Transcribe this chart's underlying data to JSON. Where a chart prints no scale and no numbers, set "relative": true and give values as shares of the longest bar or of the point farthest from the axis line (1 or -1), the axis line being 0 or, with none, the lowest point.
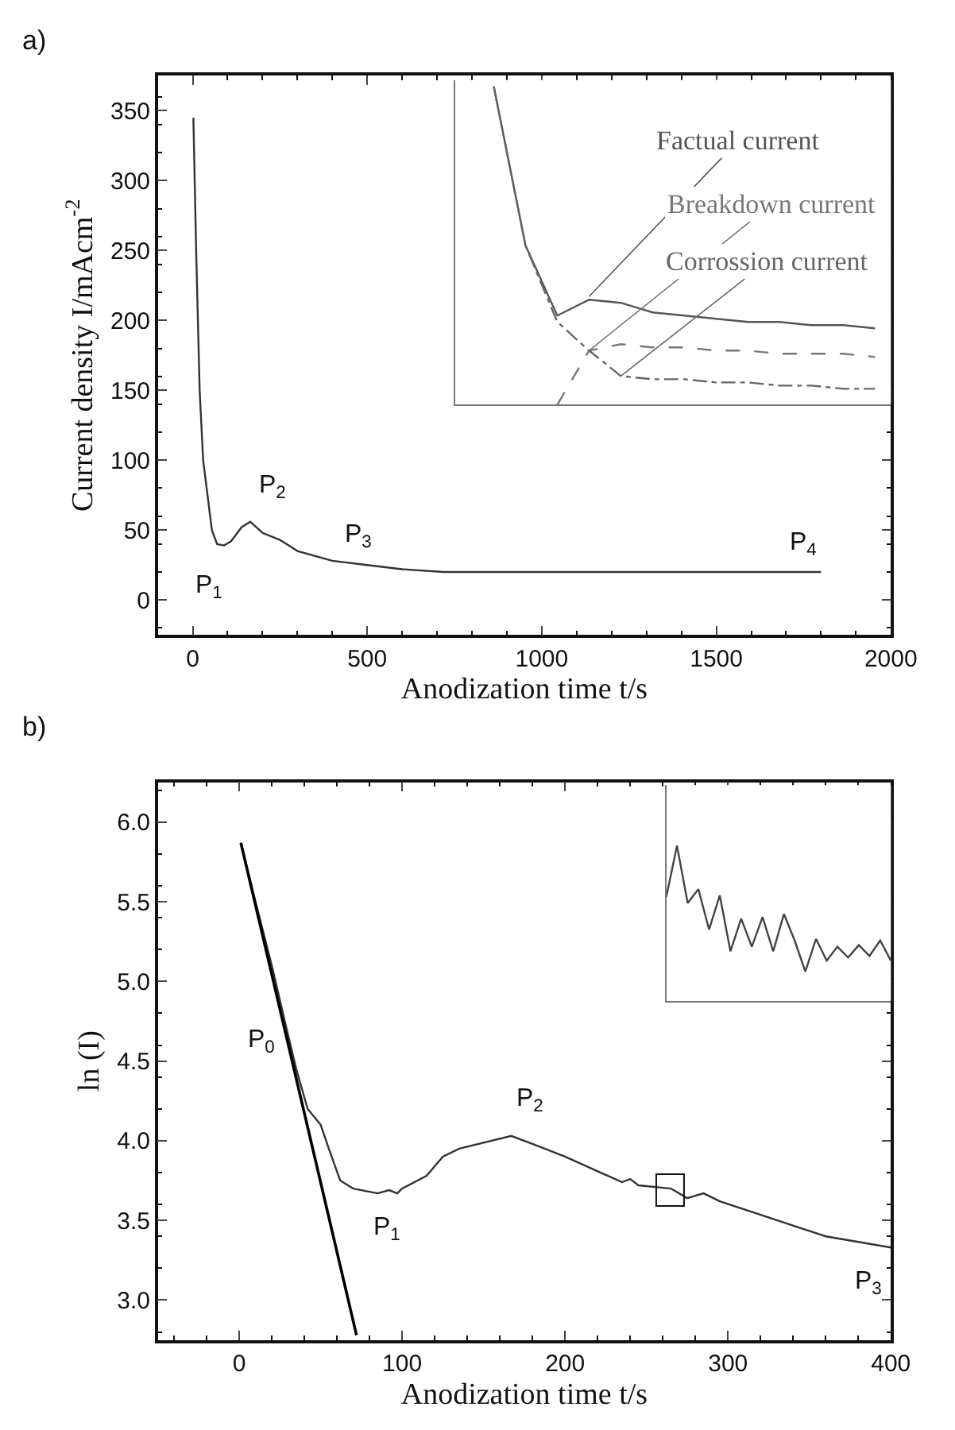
{
  "chart_data": [
    {
      "type": "line",
      "title": "a)",
      "xlabel": "Anodization time t/s",
      "ylabel": "Current density I/mAcm$^{-2}$",
      "xlim": [
        -100,
        2000
      ],
      "xticks": [
        0,
        500,
        1000,
        1500,
        2000
      ],
      "ylim": [
        -25,
        375
      ],
      "yticks": [
        0,
        50,
        100,
        150,
        200,
        250,
        300,
        350
      ],
      "x": [
        2,
        10,
        20,
        30,
        40,
        55,
        70,
        90,
        110,
        140,
        165,
        200,
        250,
        300,
        400,
        500,
        600,
        720,
        1000,
        1800
      ],
      "series": [
        {
          "color": "#333333",
          "values": [
            345,
            250,
            150,
            100,
            80,
            50,
            40,
            39,
            42,
            52,
            56,
            48,
            43,
            35,
            28,
            25,
            22,
            20,
            20,
            20
          ]
        }
      ],
      "annotations": [
        {
          "text": "P$_{1}$",
          "x": 90,
          "y": 39
        },
        {
          "text": "P$_{2}$",
          "x": 165,
          "y": 56
        },
        {
          "text": "P$_{3}$",
          "x": 430,
          "y": 27
        },
        {
          "text": "P$_{4}$",
          "x": 1750,
          "y": 20
        }
      ]
    },
    {
      "type": "line",
      "relative": true,
      "categories": [
        null,
        null,
        null,
        null,
        null,
        null,
        null,
        null,
        null,
        null,
        null,
        null,
        null
      ],
      "series": [
        {
          "name": "Factual current",
          "color": "#555555",
          "line_style": "solid",
          "values": [
            1,
            0.5,
            0.28,
            0.33,
            0.32,
            0.29,
            0.28,
            0.27,
            0.26,
            0.26,
            0.25,
            0.25,
            0.24
          ]
        },
        {
          "name": "Breakdown current",
          "color": "#777777",
          "line_style": "dashed",
          "values": [
            null,
            null,
            0,
            0.17,
            0.19,
            0.18,
            0.18,
            0.17,
            0.17,
            0.16,
            0.16,
            0.16,
            0.15
          ]
        },
        {
          "name": "Corrossion current",
          "color": "#666666",
          "line_style": "dotted",
          "values": [
            1,
            0.5,
            0.26,
            0.17,
            0.09,
            0.08,
            0.08,
            0.07,
            0.07,
            0.06,
            0.06,
            0.05,
            0.05
          ]
        }
      ]
    },
    {
      "type": "line",
      "title": "b)",
      "xlabel": "Anodization time t/s",
      "ylabel": "ln (I)",
      "xlim": [
        -50,
        400
      ],
      "xticks": [
        0,
        100,
        200,
        300,
        400
      ],
      "ylim": [
        2.75,
        6.25
      ],
      "yticks": [
        {
          "value": 3,
          "label": "3.0"
        },
        3.5,
        {
          "value": 4,
          "label": "4.0"
        },
        4.5,
        {
          "value": 5,
          "label": "5.0"
        },
        5.5,
        {
          "value": 6,
          "label": "6.0"
        }
      ],
      "x": [
        1,
        10,
        20,
        28,
        35,
        42,
        50,
        55,
        62,
        70,
        85,
        92,
        97,
        100,
        115,
        125,
        135,
        167,
        180,
        200,
        235,
        240,
        245,
        265,
        275,
        285,
        295,
        360,
        400
      ],
      "series": [
        {
          "color": "#333333",
          "values": [
            5.87,
            5.5,
            5.1,
            4.75,
            4.45,
            4.2,
            4.1,
            3.95,
            3.75,
            3.7,
            3.67,
            3.69,
            3.67,
            3.7,
            3.78,
            3.9,
            3.95,
            4.03,
            3.98,
            3.9,
            3.74,
            3.76,
            3.72,
            3.7,
            3.64,
            3.67,
            3.62,
            3.4,
            3.33
          ]
        },
        {
          "type": "line",
          "color": "#000000",
          "x": [
            1,
            72
          ],
          "values": [
            5.87,
            2.78
          ]
        }
      ],
      "annotations": [
        {
          "text": "P$_{0}$",
          "x": 33,
          "y": 4.5
        },
        {
          "text": "P$_{1}$",
          "x": 85,
          "y": 3.67
        },
        {
          "text": "P$_{2}$",
          "x": 167,
          "y": 4.03
        },
        {
          "text": "P$_{3}$",
          "x": 400,
          "y": 3.33
        }
      ]
    },
    {
      "type": "line",
      "relative": true,
      "categories": [
        null,
        null,
        null,
        null,
        null,
        null,
        null,
        null,
        null,
        null,
        null,
        null,
        null,
        null,
        null,
        null,
        null,
        null,
        null,
        null,
        null,
        null
      ],
      "series": [
        {
          "color": "#444444",
          "values": [
            0.67,
            1,
            0.63,
            0.72,
            0.46,
            0.68,
            0.32,
            0.53,
            0.35,
            0.54,
            0.32,
            0.56,
            0.39,
            0.19,
            0.4,
            0.26,
            0.35,
            0.28,
            0.36,
            0.29,
            0.39,
            0.26
          ]
        }
      ]
    }
  ]
}
